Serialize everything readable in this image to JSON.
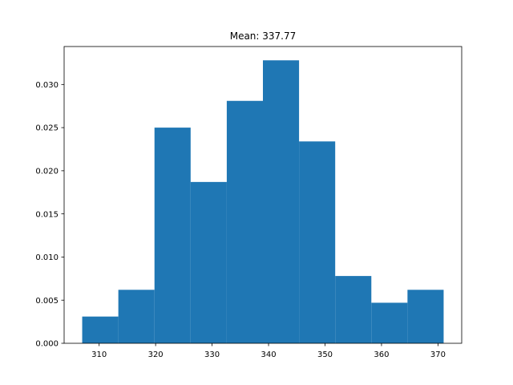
{
  "chart_data": {
    "type": "bar",
    "title": "Mean: 337.77",
    "xlabel": "",
    "ylabel": "",
    "bin_edges": [
      307.0,
      313.4,
      319.8,
      326.2,
      332.6,
      339.0,
      345.4,
      351.8,
      358.2,
      364.6,
      371.0
    ],
    "values": [
      0.0031,
      0.0062,
      0.025,
      0.0187,
      0.0281,
      0.0328,
      0.0234,
      0.0078,
      0.0047,
      0.0062
    ],
    "xlim": [
      303.8,
      374.2
    ],
    "ylim": [
      0,
      0.0344
    ],
    "x_ticks": [
      310,
      320,
      330,
      340,
      350,
      360,
      370
    ],
    "x_tick_labels": [
      "310",
      "320",
      "330",
      "340",
      "350",
      "360",
      "370"
    ],
    "y_ticks": [
      0,
      0.005,
      0.01,
      0.015,
      0.02,
      0.025,
      0.03
    ],
    "y_tick_labels": [
      "0.000",
      "0.005",
      "0.010",
      "0.015",
      "0.020",
      "0.025",
      "0.030"
    ],
    "grid": false,
    "bar_color": "#1f77b4"
  }
}
